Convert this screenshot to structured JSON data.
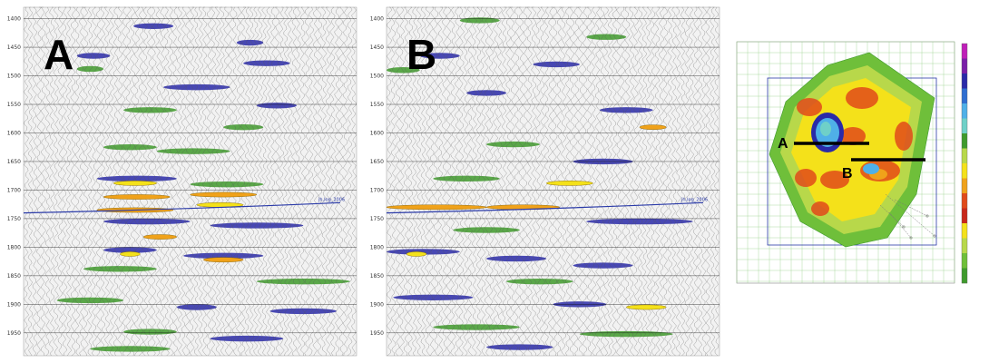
{
  "sections": [
    {
      "label": "A",
      "time_ticks": [
        "1400",
        "1450",
        "1500",
        "1550",
        "1600",
        "1650",
        "1700",
        "1750",
        "1800",
        "1850",
        "1900",
        "1950"
      ],
      "tick_start": 1400,
      "tick_step": 50,
      "horizon_label": "jh,log_2006",
      "anomalies": [
        {
          "t": 1688,
          "x0": 0.27,
          "x1": 0.4,
          "color": "#f4e11a"
        },
        {
          "t": 1712,
          "x0": 0.24,
          "x1": 0.44,
          "color": "#f0a21a"
        },
        {
          "t": 1726,
          "x0": 0.52,
          "x1": 0.66,
          "color": "#f4e11a"
        },
        {
          "t": 1708,
          "x0": 0.5,
          "x1": 0.7,
          "color": "#f0a21a"
        },
        {
          "t": 1735,
          "x0": 0.22,
          "x1": 0.45,
          "color": "#f0a21a"
        },
        {
          "t": 1782,
          "x0": 0.36,
          "x1": 0.46,
          "color": "#f0a21a"
        },
        {
          "t": 1812,
          "x0": 0.29,
          "x1": 0.35,
          "color": "#f4e11a"
        },
        {
          "t": 1822,
          "x0": 0.54,
          "x1": 0.66,
          "color": "#f0a21a"
        }
      ],
      "events": [
        {
          "t": 1413,
          "x0": 0.33,
          "x1": 0.45,
          "color": "#2a2aa8"
        },
        {
          "t": 1442,
          "x0": 0.64,
          "x1": 0.72,
          "color": "#2a2aa8"
        },
        {
          "t": 1465,
          "x0": 0.16,
          "x1": 0.26,
          "color": "#2a2aa8"
        },
        {
          "t": 1478,
          "x0": 0.66,
          "x1": 0.8,
          "color": "#2a2aa8"
        },
        {
          "t": 1488,
          "x0": 0.16,
          "x1": 0.24,
          "color": "#3f9a2c"
        },
        {
          "t": 1520,
          "x0": 0.42,
          "x1": 0.62,
          "color": "#2a2aa8"
        },
        {
          "t": 1560,
          "x0": 0.3,
          "x1": 0.46,
          "color": "#3f9a2c"
        },
        {
          "t": 1552,
          "x0": 0.7,
          "x1": 0.82,
          "color": "#2a2aa8"
        },
        {
          "t": 1590,
          "x0": 0.6,
          "x1": 0.72,
          "color": "#3f9a2c"
        },
        {
          "t": 1625,
          "x0": 0.24,
          "x1": 0.4,
          "color": "#3f9a2c"
        },
        {
          "t": 1632,
          "x0": 0.4,
          "x1": 0.62,
          "color": "#3f9a2c"
        },
        {
          "t": 1680,
          "x0": 0.22,
          "x1": 0.46,
          "color": "#2a2aa8"
        },
        {
          "t": 1690,
          "x0": 0.5,
          "x1": 0.72,
          "color": "#3f9a2c"
        },
        {
          "t": 1755,
          "x0": 0.24,
          "x1": 0.5,
          "color": "#2a2aa8"
        },
        {
          "t": 1762,
          "x0": 0.56,
          "x1": 0.84,
          "color": "#2a2aa8"
        },
        {
          "t": 1805,
          "x0": 0.24,
          "x1": 0.4,
          "color": "#2a2aa8"
        },
        {
          "t": 1815,
          "x0": 0.48,
          "x1": 0.72,
          "color": "#2a2aa8"
        },
        {
          "t": 1838,
          "x0": 0.18,
          "x1": 0.4,
          "color": "#3f9a2c"
        },
        {
          "t": 1860,
          "x0": 0.7,
          "x1": 0.98,
          "color": "#3f9a2c"
        },
        {
          "t": 1893,
          "x0": 0.1,
          "x1": 0.3,
          "color": "#3f9a2c"
        },
        {
          "t": 1905,
          "x0": 0.46,
          "x1": 0.58,
          "color": "#2a2aa8"
        },
        {
          "t": 1912,
          "x0": 0.74,
          "x1": 0.94,
          "color": "#2a2aa8"
        },
        {
          "t": 1948,
          "x0": 0.3,
          "x1": 0.46,
          "color": "#3f9a2c"
        },
        {
          "t": 1960,
          "x0": 0.56,
          "x1": 0.78,
          "color": "#2a2aa8"
        },
        {
          "t": 1978,
          "x0": 0.2,
          "x1": 0.44,
          "color": "#3f9a2c"
        }
      ]
    },
    {
      "label": "B",
      "time_ticks": [
        "1400",
        "1450",
        "1500",
        "1550",
        "1600",
        "1650",
        "1700",
        "1750",
        "1800",
        "1850",
        "1900",
        "1950"
      ],
      "tick_start": 1400,
      "tick_step": 50,
      "horizon_label": "jh,log_2006",
      "anomalies": [
        {
          "t": 1688,
          "x0": 0.48,
          "x1": 0.62,
          "color": "#f4e11a"
        },
        {
          "t": 1730,
          "x0": 0.0,
          "x1": 0.3,
          "color": "#f0a21a"
        },
        {
          "t": 1730,
          "x0": 0.3,
          "x1": 0.52,
          "color": "#f0a21a"
        },
        {
          "t": 1590,
          "x0": 0.76,
          "x1": 0.84,
          "color": "#f0a21a"
        },
        {
          "t": 1812,
          "x0": 0.06,
          "x1": 0.12,
          "color": "#f4e11a"
        },
        {
          "t": 1905,
          "x0": 0.72,
          "x1": 0.84,
          "color": "#f4e11a"
        }
      ],
      "events": [
        {
          "t": 1403,
          "x0": 0.22,
          "x1": 0.34,
          "color": "#3f9a2c"
        },
        {
          "t": 1432,
          "x0": 0.6,
          "x1": 0.72,
          "color": "#3f9a2c"
        },
        {
          "t": 1465,
          "x0": 0.1,
          "x1": 0.22,
          "color": "#2a2aa8"
        },
        {
          "t": 1480,
          "x0": 0.44,
          "x1": 0.58,
          "color": "#2a2aa8"
        },
        {
          "t": 1490,
          "x0": 0.0,
          "x1": 0.1,
          "color": "#3f9a2c"
        },
        {
          "t": 1530,
          "x0": 0.24,
          "x1": 0.36,
          "color": "#2a2aa8"
        },
        {
          "t": 1560,
          "x0": 0.64,
          "x1": 0.8,
          "color": "#2a2aa8"
        },
        {
          "t": 1620,
          "x0": 0.3,
          "x1": 0.46,
          "color": "#3f9a2c"
        },
        {
          "t": 1650,
          "x0": 0.56,
          "x1": 0.74,
          "color": "#2a2aa8"
        },
        {
          "t": 1680,
          "x0": 0.14,
          "x1": 0.34,
          "color": "#3f9a2c"
        },
        {
          "t": 1755,
          "x0": 0.6,
          "x1": 0.92,
          "color": "#2a2aa8"
        },
        {
          "t": 1770,
          "x0": 0.2,
          "x1": 0.4,
          "color": "#3f9a2c"
        },
        {
          "t": 1808,
          "x0": 0.0,
          "x1": 0.22,
          "color": "#2a2aa8"
        },
        {
          "t": 1820,
          "x0": 0.3,
          "x1": 0.48,
          "color": "#2a2aa8"
        },
        {
          "t": 1832,
          "x0": 0.56,
          "x1": 0.74,
          "color": "#2a2aa8"
        },
        {
          "t": 1860,
          "x0": 0.36,
          "x1": 0.56,
          "color": "#3f9a2c"
        },
        {
          "t": 1888,
          "x0": 0.02,
          "x1": 0.26,
          "color": "#2a2aa8"
        },
        {
          "t": 1900,
          "x0": 0.5,
          "x1": 0.66,
          "color": "#2a2aa8"
        },
        {
          "t": 1940,
          "x0": 0.14,
          "x1": 0.4,
          "color": "#3f9a2c"
        },
        {
          "t": 1952,
          "x0": 0.58,
          "x1": 0.86,
          "color": "#3f9a2c"
        },
        {
          "t": 1975,
          "x0": 0.3,
          "x1": 0.5,
          "color": "#2a2aa8"
        }
      ]
    }
  ],
  "map": {
    "profile_labels": [
      "A",
      "B"
    ],
    "colorbar_colors": [
      "#bf1fb8",
      "#7a1fa8",
      "#2a2aa8",
      "#2f6ed0",
      "#4fb0e8",
      "#6fd0c8",
      "#3f9a2c",
      "#b8d84a",
      "#f4e11a",
      "#f0a21a",
      "#e04a1a",
      "#c8281a",
      "#f4e11a",
      "#b8d84a",
      "#6fbf3a",
      "#3f9a2c"
    ]
  }
}
